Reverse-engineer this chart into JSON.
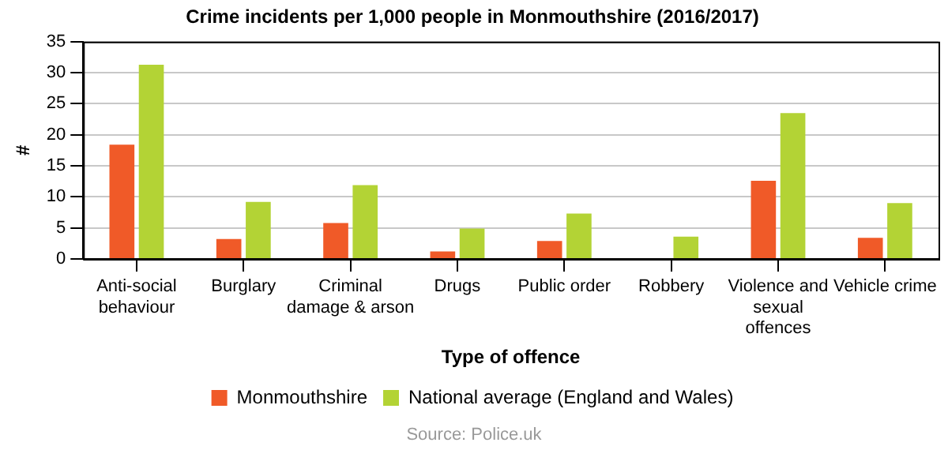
{
  "chart_data": {
    "type": "bar",
    "title": "Crime incidents per 1,000 people in Monmouthshire (2016/2017)",
    "xlabel": "Type of offence",
    "ylabel": "#",
    "categories": [
      "Anti-social behaviour",
      "Burglary",
      "Criminal damage & arson",
      "Drugs",
      "Public order",
      "Robbery",
      "Violence and sexual offences",
      "Vehicle crime"
    ],
    "series": [
      {
        "name": "Monmouthshire",
        "color": "#f05a28",
        "values": [
          18.4,
          3.2,
          5.8,
          1.2,
          2.9,
          0,
          12.6,
          3.4
        ]
      },
      {
        "name": "National average (England and Wales)",
        "color": "#b3d335",
        "values": [
          31.3,
          9.2,
          11.9,
          4.9,
          7.3,
          3.6,
          23.5,
          9.0
        ]
      }
    ],
    "ylim": [
      0,
      35
    ],
    "yticks": [
      0,
      5,
      10,
      15,
      20,
      25,
      30,
      35
    ],
    "grid": "y",
    "legend": "bottom",
    "annotations": [
      "Source: Police.uk"
    ]
  }
}
